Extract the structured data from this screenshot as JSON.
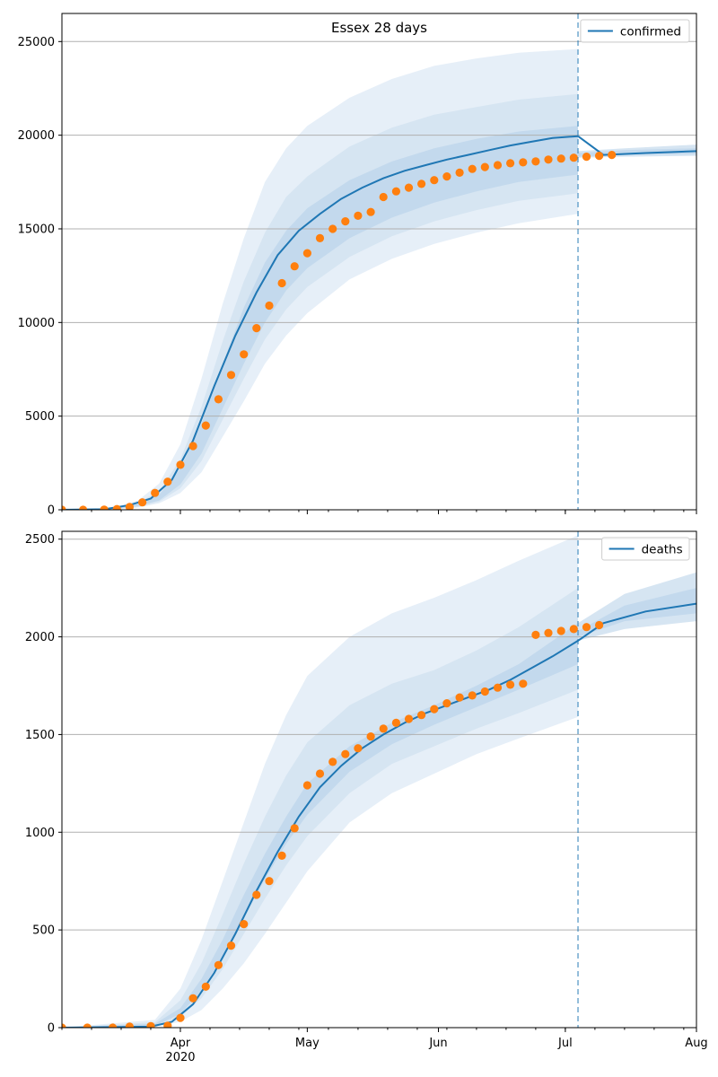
{
  "chart_data": [
    {
      "type": "line",
      "title": "Essex 28 days",
      "legend": {
        "entries": [
          "confirmed"
        ],
        "placement": "top-right"
      },
      "x_range": [
        "2020-03-04",
        "2020-08-01"
      ],
      "x_ticks": [
        {
          "date": "2020-04-01",
          "label": "Apr",
          "sublabel": "2020"
        },
        {
          "date": "2020-05-01",
          "label": "May",
          "sublabel": ""
        },
        {
          "date": "2020-06-01",
          "label": "Jun",
          "sublabel": ""
        },
        {
          "date": "2020-07-01",
          "label": "Jul",
          "sublabel": ""
        },
        {
          "date": "2020-08-01",
          "label": "Aug",
          "sublabel": ""
        }
      ],
      "show_x_labels": false,
      "ylim": [
        0,
        26500
      ],
      "y_ticks": [
        0,
        5000,
        10000,
        15000,
        20000,
        25000
      ],
      "grid": "horizontal",
      "forecast_start": "2020-07-04",
      "model_curve": {
        "name": "confirmed",
        "color": "#1f77b4",
        "x": [
          "2020-03-04",
          "2020-03-14",
          "2020-03-20",
          "2020-03-25",
          "2020-03-30",
          "2020-04-04",
          "2020-04-09",
          "2020-04-14",
          "2020-04-19",
          "2020-04-24",
          "2020-04-29",
          "2020-05-04",
          "2020-05-09",
          "2020-05-14",
          "2020-05-19",
          "2020-05-24",
          "2020-05-29",
          "2020-06-03",
          "2020-06-08",
          "2020-06-13",
          "2020-06-18",
          "2020-06-23",
          "2020-06-28",
          "2020-07-04",
          "2020-07-10",
          "2020-07-20",
          "2020-08-01"
        ],
        "y": [
          0,
          30,
          250,
          600,
          1600,
          3700,
          6600,
          9300,
          11600,
          13600,
          14900,
          15800,
          16600,
          17200,
          17700,
          18100,
          18400,
          18700,
          18950,
          19200,
          19450,
          19650,
          19850,
          19950,
          18950,
          19050,
          19150
        ]
      },
      "bands": [
        {
          "x": [
            "2020-03-04",
            "2020-03-16",
            "2020-03-22",
            "2020-03-27",
            "2020-04-01",
            "2020-04-06",
            "2020-04-11",
            "2020-04-16",
            "2020-04-21",
            "2020-04-26",
            "2020-05-01",
            "2020-05-11",
            "2020-05-21",
            "2020-05-31",
            "2020-06-10",
            "2020-06-20",
            "2020-07-04"
          ],
          "upper": [
            0,
            100,
            500,
            1400,
            3500,
            7000,
            11000,
            14500,
            17500,
            19300,
            20500,
            22000,
            23000,
            23700,
            24100,
            24400,
            24600
          ],
          "lower": [
            0,
            10,
            120,
            350,
            900,
            2000,
            3900,
            5800,
            7800,
            9300,
            10500,
            12300,
            13400,
            14200,
            14800,
            15300,
            15800
          ]
        },
        {
          "x": [
            "2020-03-04",
            "2020-03-16",
            "2020-03-22",
            "2020-03-27",
            "2020-04-01",
            "2020-04-06",
            "2020-04-11",
            "2020-04-16",
            "2020-04-21",
            "2020-04-26",
            "2020-05-01",
            "2020-05-11",
            "2020-05-21",
            "2020-05-31",
            "2020-06-10",
            "2020-06-20",
            "2020-07-04"
          ],
          "upper": [
            0,
            70,
            380,
            1000,
            2700,
            5500,
            9000,
            12200,
            14800,
            16700,
            17800,
            19400,
            20400,
            21100,
            21500,
            21900,
            22200
          ],
          "lower": [
            0,
            15,
            160,
            430,
            1150,
            2600,
            4800,
            7000,
            9100,
            10700,
            11900,
            13500,
            14600,
            15400,
            16000,
            16500,
            16900
          ]
        },
        {
          "x": [
            "2020-03-04",
            "2020-03-16",
            "2020-03-22",
            "2020-03-27",
            "2020-04-01",
            "2020-04-06",
            "2020-04-11",
            "2020-04-16",
            "2020-04-21",
            "2020-04-26",
            "2020-05-01",
            "2020-05-11",
            "2020-05-21",
            "2020-05-31",
            "2020-06-10",
            "2020-06-20",
            "2020-07-04"
          ],
          "upper": [
            0,
            50,
            300,
            800,
            2200,
            4600,
            7800,
            10800,
            13200,
            14900,
            16100,
            17600,
            18600,
            19300,
            19800,
            20200,
            20500
          ],
          "lower": [
            0,
            20,
            200,
            500,
            1350,
            3000,
            5400,
            7800,
            10000,
            11700,
            12900,
            14500,
            15600,
            16400,
            17000,
            17500,
            17900
          ]
        }
      ],
      "forecast_bands": [
        {
          "x": [
            "2020-07-04",
            "2020-07-15",
            "2020-08-01"
          ],
          "upper": [
            19150,
            19300,
            19500
          ],
          "lower": [
            18800,
            18850,
            18900
          ]
        },
        {
          "x": [
            "2020-07-04",
            "2020-07-15",
            "2020-08-01"
          ],
          "upper": [
            19050,
            19200,
            19300
          ],
          "lower": [
            18850,
            18950,
            19000
          ]
        }
      ],
      "observed": {
        "color": "#ff7f0e",
        "x": [
          "2020-03-04",
          "2020-03-09",
          "2020-03-14",
          "2020-03-17",
          "2020-03-20",
          "2020-03-23",
          "2020-03-26",
          "2020-03-29",
          "2020-04-01",
          "2020-04-04",
          "2020-04-07",
          "2020-04-10",
          "2020-04-13",
          "2020-04-16",
          "2020-04-19",
          "2020-04-22",
          "2020-04-25",
          "2020-04-28",
          "2020-05-01",
          "2020-05-04",
          "2020-05-07",
          "2020-05-10",
          "2020-05-13",
          "2020-05-16",
          "2020-05-19",
          "2020-05-22",
          "2020-05-25",
          "2020-05-28",
          "2020-05-31",
          "2020-06-03",
          "2020-06-06",
          "2020-06-09",
          "2020-06-12",
          "2020-06-15",
          "2020-06-18",
          "2020-06-21",
          "2020-06-24",
          "2020-06-27",
          "2020-06-30",
          "2020-07-03",
          "2020-07-06",
          "2020-07-09",
          "2020-07-12"
        ],
        "y": [
          0,
          0,
          10,
          40,
          150,
          400,
          900,
          1500,
          2400,
          3400,
          4500,
          5900,
          7200,
          8300,
          9700,
          10900,
          12100,
          13000,
          13700,
          14500,
          15000,
          15400,
          15700,
          15900,
          16700,
          17000,
          17200,
          17400,
          17600,
          17800,
          18000,
          18200,
          18300,
          18400,
          18500,
          18550,
          18600,
          18700,
          18750,
          18800,
          18850,
          18900,
          18950
        ]
      }
    },
    {
      "type": "line",
      "title": "",
      "legend": {
        "entries": [
          "deaths"
        ],
        "placement": "top-right"
      },
      "x_range": [
        "2020-03-04",
        "2020-08-01"
      ],
      "x_ticks": [
        {
          "date": "2020-04-01",
          "label": "Apr",
          "sublabel": "2020"
        },
        {
          "date": "2020-05-01",
          "label": "May",
          "sublabel": ""
        },
        {
          "date": "2020-06-01",
          "label": "Jun",
          "sublabel": ""
        },
        {
          "date": "2020-07-01",
          "label": "Jul",
          "sublabel": ""
        },
        {
          "date": "2020-08-01",
          "label": "Aug",
          "sublabel": ""
        }
      ],
      "show_x_labels": true,
      "ylim": [
        0,
        2540
      ],
      "y_ticks": [
        0,
        500,
        1000,
        1500,
        2000,
        2500
      ],
      "grid": "horizontal",
      "forecast_start": "2020-07-04",
      "model_curve": {
        "name": "deaths",
        "color": "#1f77b4",
        "x": [
          "2020-03-04",
          "2020-03-25",
          "2020-03-30",
          "2020-04-04",
          "2020-04-09",
          "2020-04-14",
          "2020-04-19",
          "2020-04-24",
          "2020-04-29",
          "2020-05-04",
          "2020-05-09",
          "2020-05-14",
          "2020-05-19",
          "2020-05-24",
          "2020-05-29",
          "2020-06-03",
          "2020-06-08",
          "2020-06-13",
          "2020-06-18",
          "2020-06-23",
          "2020-06-28",
          "2020-07-04",
          "2020-07-10",
          "2020-07-20",
          "2020-08-01"
        ],
        "y": [
          0,
          5,
          30,
          120,
          280,
          480,
          700,
          900,
          1080,
          1230,
          1340,
          1430,
          1500,
          1560,
          1610,
          1650,
          1690,
          1730,
          1780,
          1840,
          1900,
          1980,
          2070,
          2130,
          2170
        ]
      },
      "bands": [
        {
          "x": [
            "2020-03-04",
            "2020-03-26",
            "2020-04-01",
            "2020-04-06",
            "2020-04-11",
            "2020-04-16",
            "2020-04-21",
            "2020-04-26",
            "2020-05-01",
            "2020-05-11",
            "2020-05-21",
            "2020-05-31",
            "2020-06-10",
            "2020-06-20",
            "2020-07-04"
          ],
          "upper": [
            0,
            40,
            200,
            450,
            750,
            1050,
            1350,
            1600,
            1800,
            2000,
            2120,
            2200,
            2290,
            2390,
            2520
          ],
          "lower": [
            0,
            5,
            30,
            90,
            200,
            330,
            480,
            640,
            800,
            1050,
            1200,
            1300,
            1400,
            1480,
            1590
          ]
        },
        {
          "x": [
            "2020-03-04",
            "2020-03-26",
            "2020-04-01",
            "2020-04-06",
            "2020-04-11",
            "2020-04-16",
            "2020-04-21",
            "2020-04-26",
            "2020-05-01",
            "2020-05-11",
            "2020-05-21",
            "2020-05-31",
            "2020-06-10",
            "2020-06-20",
            "2020-07-04"
          ],
          "upper": [
            0,
            28,
            140,
            330,
            580,
            840,
            1080,
            1290,
            1460,
            1650,
            1760,
            1830,
            1930,
            2050,
            2250
          ],
          "lower": [
            0,
            8,
            55,
            150,
            300,
            480,
            660,
            830,
            980,
            1200,
            1350,
            1440,
            1530,
            1610,
            1730
          ]
        },
        {
          "x": [
            "2020-03-04",
            "2020-03-26",
            "2020-04-01",
            "2020-04-06",
            "2020-04-11",
            "2020-04-16",
            "2020-04-21",
            "2020-04-26",
            "2020-05-01",
            "2020-05-11",
            "2020-05-21",
            "2020-05-31",
            "2020-06-10",
            "2020-06-20",
            "2020-07-04"
          ],
          "upper": [
            0,
            20,
            100,
            250,
            450,
            680,
            890,
            1080,
            1250,
            1440,
            1560,
            1650,
            1750,
            1860,
            2070
          ],
          "lower": [
            0,
            10,
            70,
            190,
            360,
            560,
            760,
            940,
            1090,
            1310,
            1450,
            1550,
            1640,
            1730,
            1860
          ]
        }
      ],
      "forecast_bands": [
        {
          "x": [
            "2020-07-04",
            "2020-07-15",
            "2020-08-01"
          ],
          "upper": [
            2070,
            2220,
            2330
          ],
          "lower": [
            1980,
            2040,
            2080
          ]
        },
        {
          "x": [
            "2020-07-04",
            "2020-07-15",
            "2020-08-01"
          ],
          "upper": [
            2030,
            2160,
            2250
          ],
          "lower": [
            2000,
            2080,
            2120
          ]
        }
      ],
      "observed": {
        "color": "#ff7f0e",
        "x": [
          "2020-03-04",
          "2020-03-10",
          "2020-03-16",
          "2020-03-20",
          "2020-03-25",
          "2020-03-29",
          "2020-04-01",
          "2020-04-04",
          "2020-04-07",
          "2020-04-10",
          "2020-04-13",
          "2020-04-16",
          "2020-04-19",
          "2020-04-22",
          "2020-04-25",
          "2020-04-28",
          "2020-05-01",
          "2020-05-04",
          "2020-05-07",
          "2020-05-10",
          "2020-05-13",
          "2020-05-16",
          "2020-05-19",
          "2020-05-22",
          "2020-05-25",
          "2020-05-28",
          "2020-05-31",
          "2020-06-03",
          "2020-06-06",
          "2020-06-09",
          "2020-06-12",
          "2020-06-15",
          "2020-06-18",
          "2020-06-21",
          "2020-06-24",
          "2020-06-27",
          "2020-06-30",
          "2020-07-03",
          "2020-07-06",
          "2020-07-09"
        ],
        "y": [
          0,
          0,
          0,
          5,
          8,
          10,
          50,
          150,
          210,
          320,
          420,
          530,
          680,
          750,
          880,
          1020,
          1240,
          1300,
          1360,
          1400,
          1430,
          1490,
          1530,
          1560,
          1580,
          1600,
          1630,
          1660,
          1690,
          1700,
          1720,
          1740,
          1755,
          1760,
          2010,
          2020,
          2030,
          2040,
          2050,
          2060
        ]
      }
    }
  ]
}
